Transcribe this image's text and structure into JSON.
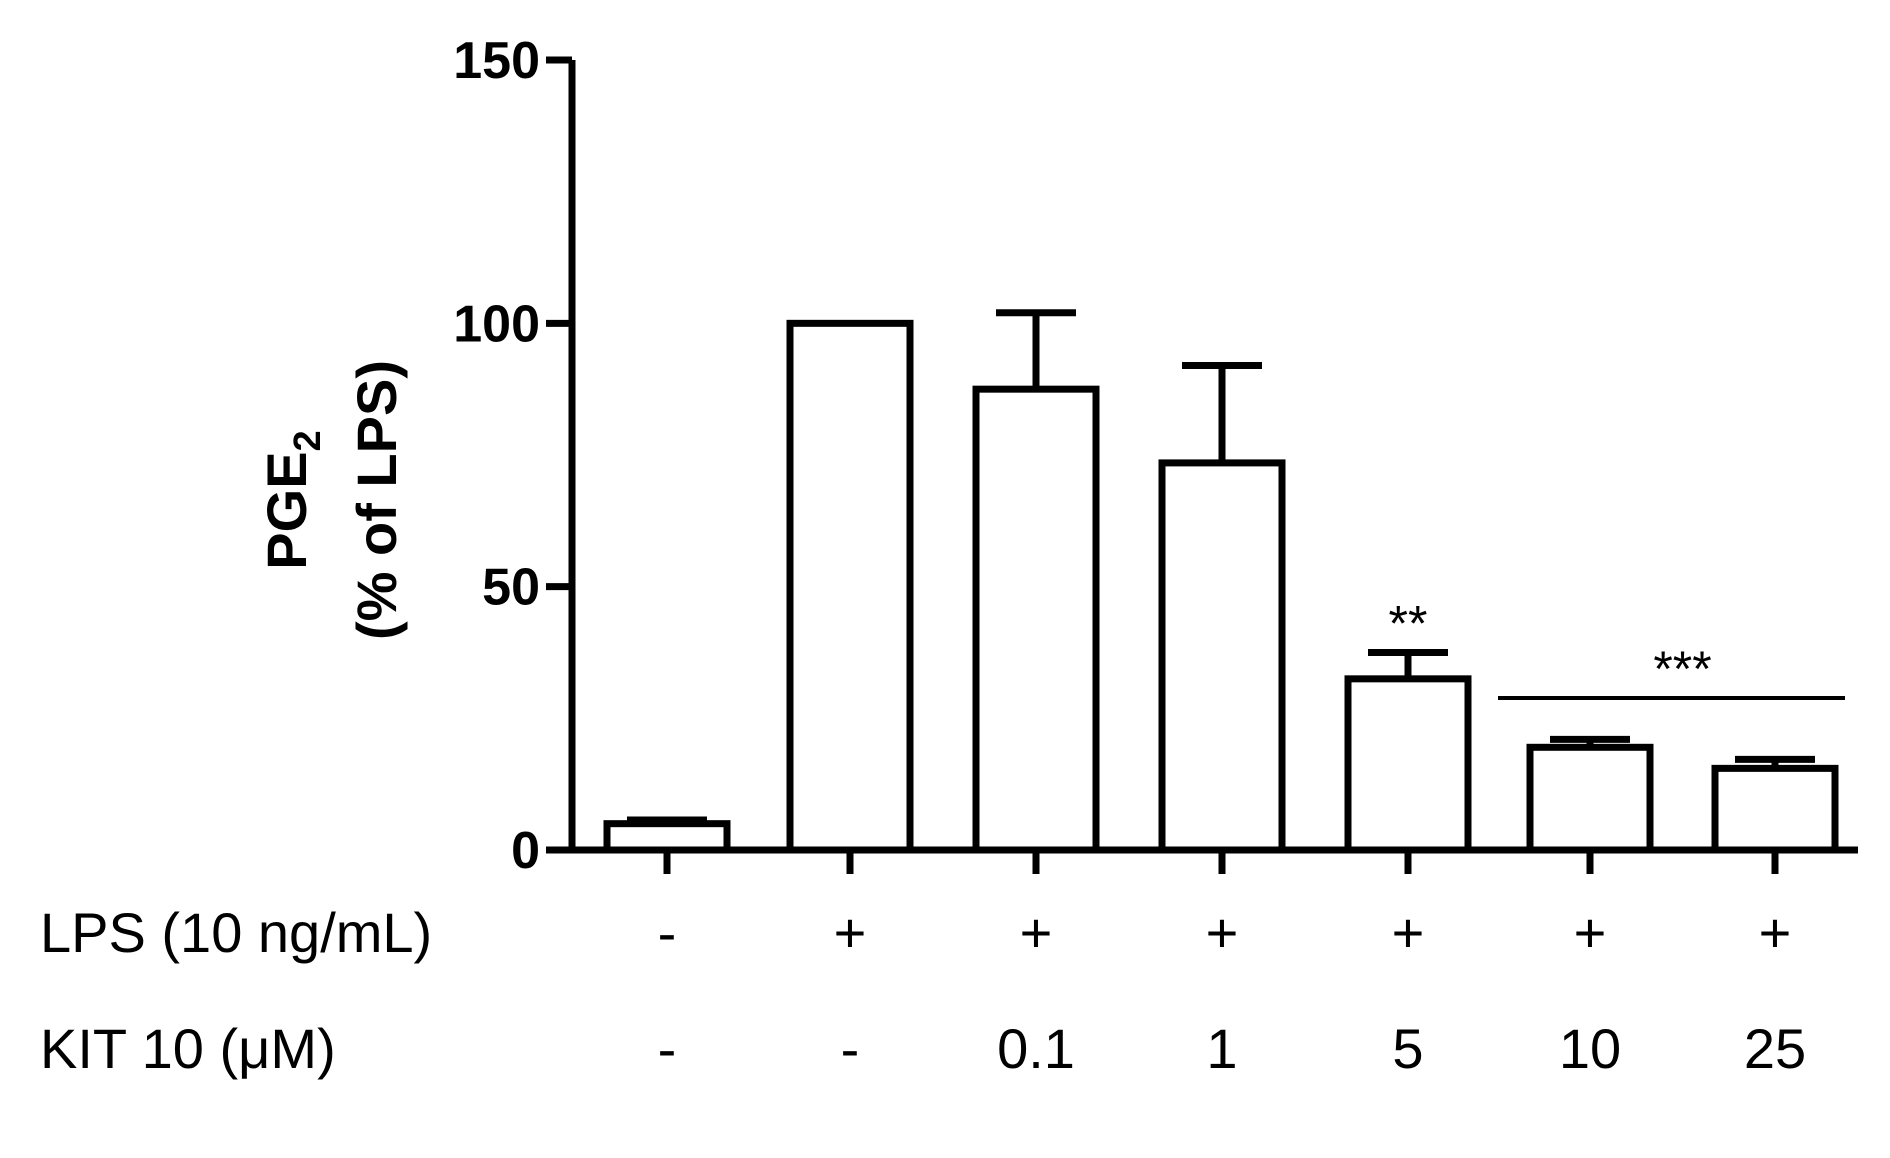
{
  "chart_data": {
    "type": "bar",
    "ylabel_main": "PGE",
    "ylabel_sub": "2",
    "ylabel_line2": "(% of LPS)",
    "ylim": [
      0,
      150
    ],
    "yticks": [
      0,
      50,
      100,
      150
    ],
    "ytick_labels": [
      "0",
      "50",
      "100",
      "150"
    ],
    "grid": false,
    "values": [
      5,
      100,
      87.5,
      73.5,
      32.5,
      19.5,
      15.5
    ],
    "errors": [
      0.7,
      0,
      14.5,
      18.5,
      5,
      1.5,
      1.7
    ],
    "row_labels": [
      "LPS (10 ng/mL)",
      "KIT 10 (μM)"
    ],
    "lps_row": [
      "-",
      "+",
      "+",
      "+",
      "+",
      "+",
      "+"
    ],
    "kit_row": [
      "-",
      "-",
      "0.1",
      "1",
      "5",
      "10",
      "25"
    ],
    "significance": [
      {
        "label": "**",
        "bars": [
          4
        ]
      },
      {
        "label": "***",
        "bars": [
          5,
          6
        ]
      }
    ],
    "colors": {
      "bar_fill": "#ffffff",
      "stroke": "#000000"
    }
  }
}
